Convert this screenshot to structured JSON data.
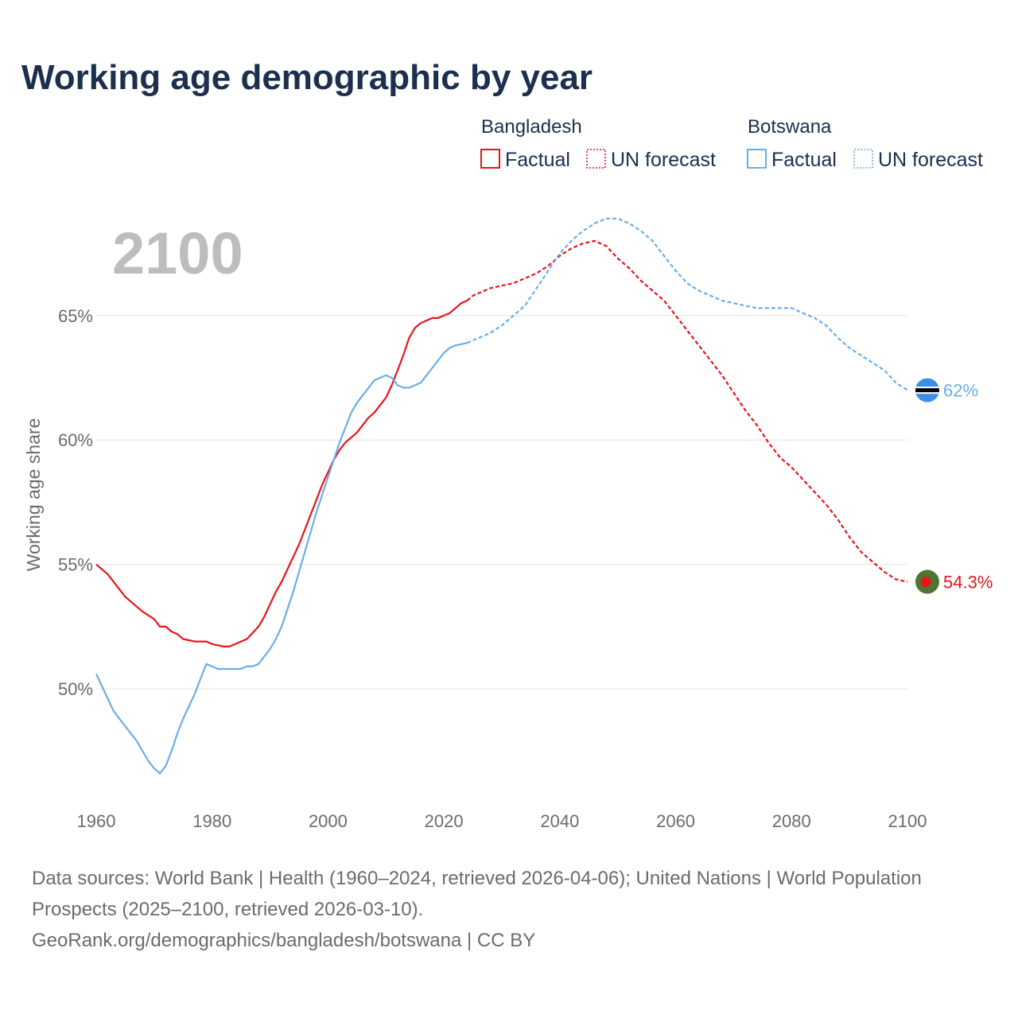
{
  "colors": {
    "title": "#1b2f4f",
    "bangladesh": "#e8141c",
    "botswana": "#6aaee6",
    "grid": "#e3e3e3",
    "tick": "#6b6b6b",
    "watermark": "#bdbdbd",
    "bd_flag_green": "#4f7433",
    "bd_flag_red": "#e8141c",
    "bw_flag_blue": "#3b8ee8"
  },
  "legend": {
    "groups": [
      {
        "name": "Bangladesh",
        "factual_label": "Factual",
        "forecast_label": "UN forecast"
      },
      {
        "name": "Botswana",
        "factual_label": "Factual",
        "forecast_label": "UN forecast"
      }
    ]
  },
  "year_display": "2100",
  "footer": {
    "sources": "Data sources: World Bank | Health (1960–2024, retrieved 2026-04-06); United Nations | World Population Prospects (2025–2100, retrieved 2026-03-10).",
    "url": "GeoRank.org/demographics/bangladesh/botswana | CC BY"
  },
  "chart_data": {
    "type": "line",
    "title": "Working age demographic by year",
    "xlabel": "",
    "ylabel": "Working age share",
    "xlim": [
      1960,
      2100
    ],
    "ylim": [
      45.4,
      69.5
    ],
    "xticks": [
      1960,
      1980,
      2000,
      2020,
      2040,
      2060,
      2080,
      2100
    ],
    "xtick_labels": [
      "1960",
      "1980",
      "2000",
      "2020",
      "2040",
      "2060",
      "2080",
      "2100"
    ],
    "yticks": [
      50,
      55,
      60,
      65
    ],
    "ytick_labels": [
      "50%",
      "55%",
      "60%",
      "65%"
    ],
    "factual_end_year": 2024,
    "series": [
      {
        "name": "Bangladesh",
        "end_label": "54.3%",
        "points": [
          [
            1960,
            55.0
          ],
          [
            1962,
            54.6
          ],
          [
            1963,
            54.3
          ],
          [
            1965,
            53.7
          ],
          [
            1966,
            53.5
          ],
          [
            1968,
            53.1
          ],
          [
            1970,
            52.8
          ],
          [
            1971,
            52.5
          ],
          [
            1972,
            52.5
          ],
          [
            1973,
            52.3
          ],
          [
            1974,
            52.2
          ],
          [
            1975,
            52.0
          ],
          [
            1977,
            51.9
          ],
          [
            1979,
            51.9
          ],
          [
            1980,
            51.8
          ],
          [
            1982,
            51.7
          ],
          [
            1983,
            51.7
          ],
          [
            1985,
            51.9
          ],
          [
            1986,
            52.0
          ],
          [
            1988,
            52.5
          ],
          [
            1989,
            52.9
          ],
          [
            1990,
            53.4
          ],
          [
            1991,
            53.9
          ],
          [
            1992,
            54.3
          ],
          [
            1993,
            54.8
          ],
          [
            1994,
            55.3
          ],
          [
            1995,
            55.8
          ],
          [
            1996,
            56.4
          ],
          [
            1997,
            57.0
          ],
          [
            1998,
            57.6
          ],
          [
            1999,
            58.2
          ],
          [
            2000,
            58.7
          ],
          [
            2001,
            59.2
          ],
          [
            2002,
            59.6
          ],
          [
            2003,
            59.9
          ],
          [
            2004,
            60.1
          ],
          [
            2005,
            60.3
          ],
          [
            2006,
            60.6
          ],
          [
            2007,
            60.9
          ],
          [
            2008,
            61.1
          ],
          [
            2009,
            61.4
          ],
          [
            2010,
            61.7
          ],
          [
            2011,
            62.2
          ],
          [
            2012,
            62.8
          ],
          [
            2013,
            63.4
          ],
          [
            2014,
            64.1
          ],
          [
            2015,
            64.5
          ],
          [
            2016,
            64.7
          ],
          [
            2017,
            64.8
          ],
          [
            2018,
            64.9
          ],
          [
            2019,
            64.9
          ],
          [
            2020,
            65.0
          ],
          [
            2021,
            65.1
          ],
          [
            2022,
            65.3
          ],
          [
            2023,
            65.5
          ],
          [
            2024,
            65.6
          ],
          [
            2025,
            65.8
          ],
          [
            2026,
            65.9
          ],
          [
            2027,
            66.0
          ],
          [
            2028,
            66.1
          ],
          [
            2030,
            66.2
          ],
          [
            2032,
            66.3
          ],
          [
            2034,
            66.5
          ],
          [
            2036,
            66.7
          ],
          [
            2038,
            67.0
          ],
          [
            2040,
            67.4
          ],
          [
            2042,
            67.7
          ],
          [
            2044,
            67.9
          ],
          [
            2046,
            68.0
          ],
          [
            2048,
            67.8
          ],
          [
            2050,
            67.3
          ],
          [
            2052,
            66.9
          ],
          [
            2054,
            66.4
          ],
          [
            2056,
            66.0
          ],
          [
            2058,
            65.6
          ],
          [
            2060,
            65.0
          ],
          [
            2062,
            64.4
          ],
          [
            2064,
            63.8
          ],
          [
            2066,
            63.2
          ],
          [
            2068,
            62.6
          ],
          [
            2070,
            61.9
          ],
          [
            2072,
            61.2
          ],
          [
            2074,
            60.6
          ],
          [
            2076,
            59.9
          ],
          [
            2078,
            59.3
          ],
          [
            2080,
            58.9
          ],
          [
            2082,
            58.4
          ],
          [
            2084,
            57.9
          ],
          [
            2086,
            57.4
          ],
          [
            2088,
            56.8
          ],
          [
            2090,
            56.1
          ],
          [
            2092,
            55.5
          ],
          [
            2094,
            55.1
          ],
          [
            2096,
            54.7
          ],
          [
            2098,
            54.4
          ],
          [
            2100,
            54.3
          ]
        ]
      },
      {
        "name": "Botswana",
        "end_label": "62%",
        "points": [
          [
            1960,
            50.6
          ],
          [
            1961,
            50.1
          ],
          [
            1962,
            49.6
          ],
          [
            1963,
            49.1
          ],
          [
            1964,
            48.8
          ],
          [
            1965,
            48.5
          ],
          [
            1966,
            48.2
          ],
          [
            1967,
            47.9
          ],
          [
            1968,
            47.5
          ],
          [
            1969,
            47.1
          ],
          [
            1970,
            46.8
          ],
          [
            1971,
            46.6
          ],
          [
            1972,
            46.9
          ],
          [
            1973,
            47.5
          ],
          [
            1974,
            48.2
          ],
          [
            1975,
            48.8
          ],
          [
            1976,
            49.3
          ],
          [
            1977,
            49.8
          ],
          [
            1978,
            50.4
          ],
          [
            1979,
            51.0
          ],
          [
            1980,
            50.9
          ],
          [
            1981,
            50.8
          ],
          [
            1983,
            50.8
          ],
          [
            1985,
            50.8
          ],
          [
            1986,
            50.9
          ],
          [
            1987,
            50.9
          ],
          [
            1988,
            51.0
          ],
          [
            1989,
            51.3
          ],
          [
            1990,
            51.6
          ],
          [
            1991,
            52.0
          ],
          [
            1992,
            52.5
          ],
          [
            1993,
            53.2
          ],
          [
            1994,
            53.9
          ],
          [
            1995,
            54.7
          ],
          [
            1996,
            55.5
          ],
          [
            1997,
            56.3
          ],
          [
            1998,
            57.1
          ],
          [
            1999,
            57.8
          ],
          [
            2000,
            58.5
          ],
          [
            2001,
            59.2
          ],
          [
            2002,
            59.9
          ],
          [
            2003,
            60.5
          ],
          [
            2004,
            61.1
          ],
          [
            2005,
            61.5
          ],
          [
            2006,
            61.8
          ],
          [
            2007,
            62.1
          ],
          [
            2008,
            62.4
          ],
          [
            2009,
            62.5
          ],
          [
            2010,
            62.6
          ],
          [
            2011,
            62.5
          ],
          [
            2012,
            62.2
          ],
          [
            2013,
            62.1
          ],
          [
            2014,
            62.1
          ],
          [
            2015,
            62.2
          ],
          [
            2016,
            62.3
          ],
          [
            2017,
            62.6
          ],
          [
            2018,
            62.9
          ],
          [
            2019,
            63.2
          ],
          [
            2020,
            63.5
          ],
          [
            2021,
            63.7
          ],
          [
            2022,
            63.8
          ],
          [
            2024,
            63.9
          ],
          [
            2026,
            64.1
          ],
          [
            2028,
            64.3
          ],
          [
            2030,
            64.6
          ],
          [
            2032,
            65.0
          ],
          [
            2034,
            65.4
          ],
          [
            2036,
            66.1
          ],
          [
            2038,
            66.8
          ],
          [
            2040,
            67.5
          ],
          [
            2042,
            68.0
          ],
          [
            2044,
            68.4
          ],
          [
            2046,
            68.7
          ],
          [
            2048,
            68.9
          ],
          [
            2050,
            68.9
          ],
          [
            2052,
            68.7
          ],
          [
            2054,
            68.4
          ],
          [
            2056,
            68.0
          ],
          [
            2058,
            67.4
          ],
          [
            2060,
            66.8
          ],
          [
            2062,
            66.3
          ],
          [
            2064,
            66.0
          ],
          [
            2066,
            65.8
          ],
          [
            2068,
            65.6
          ],
          [
            2070,
            65.5
          ],
          [
            2072,
            65.4
          ],
          [
            2074,
            65.3
          ],
          [
            2076,
            65.3
          ],
          [
            2078,
            65.3
          ],
          [
            2080,
            65.3
          ],
          [
            2082,
            65.1
          ],
          [
            2084,
            64.9
          ],
          [
            2086,
            64.6
          ],
          [
            2088,
            64.1
          ],
          [
            2090,
            63.7
          ],
          [
            2092,
            63.4
          ],
          [
            2094,
            63.1
          ],
          [
            2096,
            62.8
          ],
          [
            2098,
            62.3
          ],
          [
            2100,
            62.0
          ]
        ]
      }
    ]
  }
}
